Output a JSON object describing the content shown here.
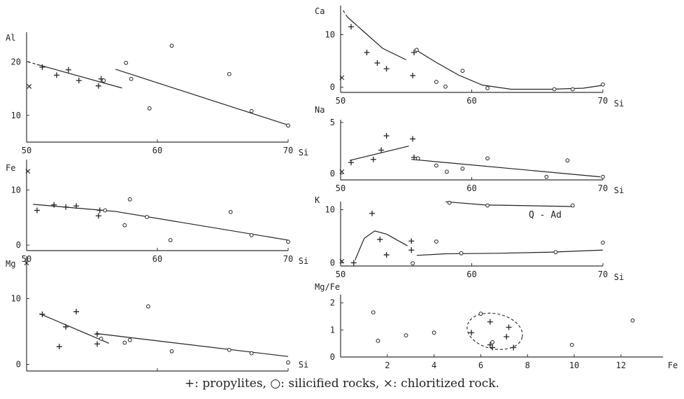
{
  "caption": "+: propylites,  ○: silicified rocks,  ×: chloritized rock.",
  "chart_data": [
    {
      "id": "al",
      "type": "scatter",
      "ylabel": "Al",
      "xlabel": "Si",
      "xlim": [
        50,
        70
      ],
      "ylim": [
        5,
        25
      ],
      "xticks": [
        "50",
        "60",
        "70"
      ],
      "yticks": [
        "20",
        "10"
      ],
      "series": [
        {
          "name": "propylites",
          "marker": "plus",
          "points": [
            [
              51.2,
              19
            ],
            [
              52.3,
              17.5
            ],
            [
              53.2,
              18.5
            ],
            [
              54,
              16.5
            ],
            [
              55.5,
              15.5
            ],
            [
              55.7,
              16.8
            ]
          ]
        },
        {
          "name": "silicified rocks",
          "marker": "circle",
          "points": [
            [
              55.9,
              16.5
            ],
            [
              57.6,
              19.8
            ],
            [
              58,
              16.8
            ],
            [
              59.4,
              11.3
            ],
            [
              61.1,
              23
            ],
            [
              65.5,
              17.7
            ],
            [
              67.2,
              10.8
            ],
            [
              70,
              8.1
            ]
          ]
        },
        {
          "name": "chloritized rock",
          "marker": "cross",
          "points": [
            [
              50.2,
              15.4
            ]
          ]
        }
      ],
      "trend_lines": [
        {
          "points": [
            [
              50.8,
              19.5
            ],
            [
              57.3,
              15.1
            ]
          ],
          "dashed_start": [
            [
              50.1,
              20
            ],
            [
              50.8,
              19.5
            ]
          ]
        },
        {
          "points": [
            [
              56.8,
              18.6
            ],
            [
              70.1,
              8.1
            ]
          ]
        }
      ]
    },
    {
      "id": "fe",
      "type": "scatter",
      "ylabel": "Fe",
      "xlabel": "Si",
      "xlim": [
        50,
        70
      ],
      "ylim": [
        -1,
        15
      ],
      "xticks": [
        "50",
        "60",
        "70"
      ],
      "yticks": [
        "10",
        "0"
      ],
      "series": [
        {
          "name": "propylites",
          "marker": "plus",
          "points": [
            [
              50.8,
              6.3
            ],
            [
              52.1,
              7.3
            ],
            [
              53,
              6.9
            ],
            [
              53.8,
              7.1
            ],
            [
              55.5,
              5.3
            ],
            [
              55.6,
              6.3
            ]
          ]
        },
        {
          "name": "silicified rocks",
          "marker": "circle",
          "points": [
            [
              56,
              6.3
            ],
            [
              57.5,
              3.6
            ],
            [
              57.9,
              8.3
            ],
            [
              59.2,
              5.1
            ],
            [
              61,
              0.9
            ],
            [
              65.6,
              6
            ],
            [
              67.2,
              1.8
            ],
            [
              70,
              0.6
            ]
          ]
        },
        {
          "name": "chloritized rock",
          "marker": "cross",
          "points": [
            [
              50.1,
              13.4
            ]
          ]
        }
      ],
      "trend_lines": [
        {
          "points": [
            [
              50.5,
              7.4
            ],
            [
              56.8,
              6.1
            ],
            [
              70,
              0.9
            ]
          ]
        }
      ]
    },
    {
      "id": "mg",
      "type": "scatter",
      "ylabel": "Mg",
      "xlabel": "Si",
      "xlim": [
        50,
        70
      ],
      "ylim": [
        -1,
        16
      ],
      "xticks": [
        "50",
        "60",
        "70"
      ],
      "yticks": [
        "10",
        "0"
      ],
      "series": [
        {
          "name": "propylites",
          "marker": "plus",
          "points": [
            [
              51.2,
              7.6
            ],
            [
              52.5,
              2.7
            ],
            [
              53,
              5.7
            ],
            [
              53.8,
              8
            ],
            [
              55.4,
              4.6
            ],
            [
              55.4,
              3.1
            ]
          ]
        },
        {
          "name": "silicified rocks",
          "marker": "circle",
          "points": [
            [
              55.7,
              3.9
            ],
            [
              57.5,
              3.3
            ],
            [
              57.9,
              3.7
            ],
            [
              59.3,
              8.8
            ],
            [
              61.1,
              2
            ],
            [
              65.5,
              2.2
            ],
            [
              67.2,
              1.7
            ],
            [
              70,
              0.3
            ]
          ]
        },
        {
          "name": "chloritized rock",
          "marker": "cross",
          "points": [
            [
              50,
              15.4
            ]
          ]
        }
      ],
      "trend_lines": [
        {
          "points": [
            [
              51,
              7.7
            ],
            [
              56.3,
              3.2
            ]
          ]
        },
        {
          "points": [
            [
              55.3,
              4.7
            ],
            [
              70,
              1.2
            ]
          ]
        }
      ]
    },
    {
      "id": "ca",
      "type": "scatter",
      "ylabel": "Ca",
      "xlabel": "Si",
      "xlim": [
        50,
        70
      ],
      "ylim": [
        -1,
        15
      ],
      "xticks": [
        "50",
        "60",
        "70"
      ],
      "yticks": [
        "10",
        "0"
      ],
      "series": [
        {
          "name": "propylites",
          "marker": "plus",
          "points": [
            [
              50.8,
              11.5
            ],
            [
              52,
              6.6
            ],
            [
              52.8,
              4.6
            ],
            [
              53.5,
              3.5
            ],
            [
              55.5,
              2.2
            ],
            [
              55.6,
              6.6
            ]
          ]
        },
        {
          "name": "silicified rocks",
          "marker": "circle",
          "points": [
            [
              55.8,
              7.1
            ],
            [
              57.3,
              1
            ],
            [
              58,
              0.1
            ],
            [
              59.3,
              3.1
            ],
            [
              61.2,
              -0.2
            ],
            [
              66.3,
              -0.4
            ],
            [
              67.7,
              -0.4
            ],
            [
              70,
              0.5
            ]
          ]
        },
        {
          "name": "chloritized rock",
          "marker": "cross",
          "points": [
            [
              50.1,
              1.8
            ]
          ]
        }
      ],
      "trend_lines": [
        {
          "points": [
            [
              50.5,
              13.4
            ],
            [
              51.8,
              10.5
            ],
            [
              53.2,
              7.4
            ],
            [
              55,
              5.2
            ]
          ],
          "dashed_start": [
            [
              50.2,
              14.6
            ],
            [
              50.5,
              13.4
            ]
          ]
        },
        {
          "points": [
            [
              55.8,
              7
            ],
            [
              57.3,
              4.7
            ],
            [
              59,
              2.3
            ],
            [
              60.8,
              0.4
            ],
            [
              63,
              -0.4
            ],
            [
              66,
              -0.4
            ],
            [
              68.5,
              -0.2
            ],
            [
              70.1,
              0.4
            ]
          ]
        }
      ]
    },
    {
      "id": "na",
      "type": "scatter",
      "ylabel": "Na",
      "xlabel": "Si",
      "xlim": [
        50,
        70
      ],
      "ylim": [
        -0.6,
        5
      ],
      "xticks": [
        "50",
        "60",
        "70"
      ],
      "yticks": [
        "5",
        "0"
      ],
      "series": [
        {
          "name": "propylites",
          "marker": "plus",
          "points": [
            [
              50.8,
              1.1
            ],
            [
              52.5,
              1.4
            ],
            [
              53.1,
              2.3
            ],
            [
              53.5,
              3.7
            ],
            [
              55.5,
              3.4
            ],
            [
              55.6,
              1.6
            ]
          ]
        },
        {
          "name": "silicified rocks",
          "marker": "circle",
          "points": [
            [
              55.9,
              1.5
            ],
            [
              57.3,
              0.8
            ],
            [
              58.1,
              0.2
            ],
            [
              59.3,
              0.5
            ],
            [
              61.2,
              1.5
            ],
            [
              65.7,
              -0.3
            ],
            [
              67.3,
              1.3
            ],
            [
              70,
              -0.3
            ]
          ]
        },
        {
          "name": "chloritized rock",
          "marker": "cross",
          "points": [
            [
              50.1,
              0.2
            ]
          ]
        }
      ],
      "trend_lines": [
        {
          "points": [
            [
              50.7,
              1.3
            ],
            [
              55.2,
              2.7
            ]
          ]
        },
        {
          "points": [
            [
              55.4,
              1.4
            ],
            [
              69.8,
              -0.3
            ]
          ]
        }
      ]
    },
    {
      "id": "k",
      "type": "scatter",
      "ylabel": "K",
      "xlabel": "Si",
      "xlim": [
        50,
        70
      ],
      "ylim": [
        -0.6,
        11
      ],
      "xticks": [
        "50",
        "60",
        "70"
      ],
      "yticks": [
        "10",
        "0"
      ],
      "annotation": "Q - Ad",
      "series": [
        {
          "name": "propylites",
          "marker": "plus",
          "points": [
            [
              51,
              0
            ],
            [
              52.4,
              9.3
            ],
            [
              53,
              4.4
            ],
            [
              53.5,
              1.5
            ],
            [
              55.4,
              4.1
            ],
            [
              55.4,
              2.4
            ]
          ]
        },
        {
          "name": "silicified rocks",
          "marker": "circle",
          "points": [
            [
              55.5,
              -0.1
            ],
            [
              57.3,
              4
            ],
            [
              58.3,
              11.3
            ],
            [
              59.2,
              1.8
            ],
            [
              61.2,
              10.8
            ],
            [
              66.4,
              2
            ],
            [
              67.7,
              10.8
            ],
            [
              70,
              3.8
            ]
          ]
        },
        {
          "name": "chloritized rock",
          "marker": "cross",
          "points": [
            [
              50.1,
              0.3
            ]
          ]
        }
      ],
      "trend_lines": [
        {
          "points": [
            [
              51.1,
              0.5
            ],
            [
              51.8,
              4.6
            ],
            [
              52.6,
              6
            ],
            [
              53.5,
              5.4
            ],
            [
              55.1,
              3.2
            ]
          ]
        },
        {
          "points": [
            [
              55.8,
              1.4
            ],
            [
              58,
              1.7
            ],
            [
              62,
              1.8
            ],
            [
              66,
              2
            ],
            [
              70,
              2.4
            ]
          ]
        },
        {
          "points": [
            [
              58,
              11.5
            ],
            [
              61,
              10.9
            ],
            [
              67.7,
              10.6
            ]
          ]
        }
      ]
    },
    {
      "id": "mgfe",
      "type": "scatter",
      "ylabel": "Mg/Fe",
      "xlabel": "Fe",
      "xlim": [
        0,
        13.8
      ],
      "ylim": [
        0,
        2.2
      ],
      "xticks": [
        "2",
        "4",
        "6",
        "8",
        "10",
        "12"
      ],
      "yticks": [
        "2",
        "1",
        "0"
      ],
      "series": [
        {
          "name": "propylites",
          "marker": "plus",
          "points": [
            [
              5.6,
              0.9
            ],
            [
              6.4,
              1.3
            ],
            [
              6.4,
              0.45
            ],
            [
              6.5,
              0.35
            ],
            [
              7.1,
              0.75
            ],
            [
              7.2,
              1.1
            ],
            [
              7.4,
              0.35
            ]
          ]
        },
        {
          "name": "silicified rocks",
          "marker": "circle",
          "points": [
            [
              1.4,
              1.65
            ],
            [
              1.6,
              0.6
            ],
            [
              2.8,
              0.8
            ],
            [
              4,
              0.9
            ],
            [
              6,
              1.6
            ],
            [
              6.5,
              0.55
            ],
            [
              9.9,
              0.45
            ],
            [
              12.5,
              1.35
            ]
          ]
        },
        {
          "name": "chloritized rock",
          "marker": "cross",
          "points": []
        }
      ],
      "group_ellipse": {
        "center": [
          6.6,
          0.95
        ],
        "rx": 1.2,
        "ry": 0.65,
        "style": "dashed"
      }
    }
  ]
}
